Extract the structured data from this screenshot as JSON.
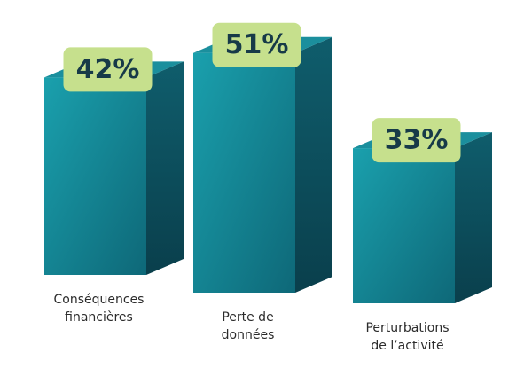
{
  "chart_data": {
    "type": "bar3d",
    "categories": [
      [
        "Conséquences",
        "financières"
      ],
      [
        "Perte de",
        "données"
      ],
      [
        "Perturbations",
        "de l’activité"
      ]
    ],
    "values": [
      42,
      51,
      33
    ],
    "value_labels": [
      "42%",
      "51%",
      "33%"
    ],
    "color": "#1790a0"
  }
}
